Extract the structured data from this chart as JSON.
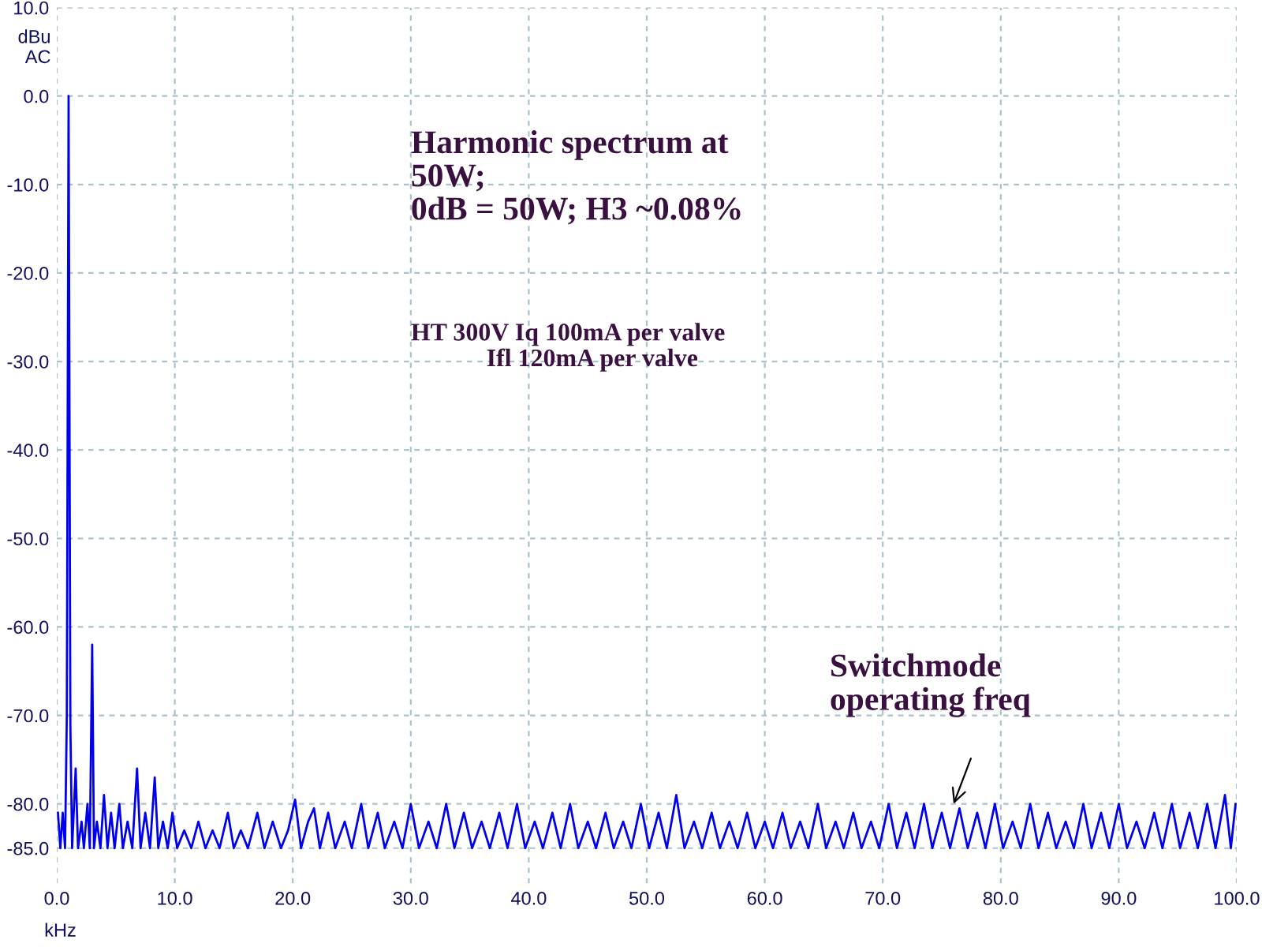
{
  "chart_data": {
    "type": "line",
    "xlabel": "kHz",
    "ylabel": "dBu\nAC",
    "xlim": [
      0,
      100
    ],
    "ylim": [
      -89,
      10
    ],
    "xticks": [
      {
        "value": 0,
        "label": "0.0"
      },
      {
        "value": 10,
        "label": "10.0"
      },
      {
        "value": 20,
        "label": "20.0"
      },
      {
        "value": 30,
        "label": "30.0"
      },
      {
        "value": 40,
        "label": "40.0"
      },
      {
        "value": 50,
        "label": "50.0"
      },
      {
        "value": 60,
        "label": "60.0"
      },
      {
        "value": 70,
        "label": "70.0"
      },
      {
        "value": 80,
        "label": "80.0"
      },
      {
        "value": 90,
        "label": "90.0"
      },
      {
        "value": 100,
        "label": "100.0"
      }
    ],
    "yticks": [
      {
        "value": 10,
        "label": "10.0"
      },
      {
        "value": 0,
        "label": "0.0"
      },
      {
        "value": -10,
        "label": "-10.0"
      },
      {
        "value": -20,
        "label": "-20.0"
      },
      {
        "value": -30,
        "label": "-30.0"
      },
      {
        "value": -40,
        "label": "-40.0"
      },
      {
        "value": -50,
        "label": "-50.0"
      },
      {
        "value": -60,
        "label": "-60.0"
      },
      {
        "value": -70,
        "label": "-70.0"
      },
      {
        "value": -80,
        "label": "-80.0"
      },
      {
        "value": -85,
        "label": "-85.0"
      }
    ],
    "grid": true,
    "marker": "none",
    "line_style": "solid",
    "annotations": [
      "Harmonic spectrum at\n50W;\n0dB = 50W; H3 ~0.08%",
      "HT 300V Iq 100mA per valve\n            Ifl 120mA per valve",
      {
        "text": "Switchmode\noperating freq",
        "x": 76,
        "y": -80
      }
    ],
    "series": [
      {
        "color": "#0000ee",
        "x": [
          0.1,
          0.3,
          0.5,
          0.7,
          0.85,
          1.0,
          1.15,
          1.3,
          1.6,
          1.8,
          2.1,
          2.3,
          2.6,
          2.8,
          3.0,
          3.15,
          3.4,
          3.7,
          4.0,
          4.3,
          4.6,
          4.9,
          5.3,
          5.6,
          6.0,
          6.4,
          6.8,
          7.1,
          7.5,
          7.9,
          8.3,
          8.6,
          9.0,
          9.4,
          9.8,
          10.2,
          10.8,
          11.4,
          12.0,
          12.6,
          13.2,
          13.8,
          14.5,
          15.0,
          15.6,
          16.2,
          17.0,
          17.6,
          18.3,
          19.0,
          19.6,
          20.2,
          20.7,
          21.3,
          21.8,
          22.3,
          23.0,
          23.6,
          24.4,
          25.0,
          25.8,
          26.4,
          27.2,
          27.8,
          28.6,
          29.3,
          30.0,
          30.7,
          31.5,
          32.2,
          33.0,
          33.7,
          34.5,
          35.2,
          36.0,
          36.7,
          37.5,
          38.2,
          39.0,
          39.7,
          40.5,
          41.2,
          42.0,
          42.7,
          43.5,
          44.2,
          45.0,
          45.7,
          46.5,
          47.2,
          48.0,
          48.7,
          49.5,
          50.2,
          51.0,
          51.7,
          52.5,
          53.2,
          54.0,
          54.7,
          55.5,
          56.2,
          57.0,
          57.7,
          58.5,
          59.2,
          60.0,
          60.7,
          61.5,
          62.2,
          63.0,
          63.7,
          64.5,
          65.2,
          66.0,
          66.7,
          67.5,
          68.2,
          69.0,
          69.7,
          70.5,
          71.2,
          72.0,
          72.7,
          73.5,
          74.2,
          75.0,
          75.7,
          76.5,
          77.2,
          78.0,
          78.7,
          79.5,
          80.2,
          81.0,
          81.7,
          82.5,
          83.2,
          84.0,
          84.7,
          85.5,
          86.2,
          87.0,
          87.7,
          88.5,
          89.2,
          90.0,
          90.7,
          91.5,
          92.2,
          93.0,
          93.7,
          94.5,
          95.2,
          96.0,
          96.7,
          97.5,
          98.2,
          99.0,
          99.5,
          99.9
        ],
        "values": [
          -81,
          -85,
          -81,
          -85,
          -70,
          0,
          -71,
          -85,
          -76,
          -85,
          -82,
          -85,
          -80,
          -85,
          -62,
          -85,
          -82,
          -85,
          -79,
          -85,
          -81,
          -85,
          -80,
          -85,
          -82,
          -85,
          -76,
          -85,
          -81,
          -85,
          -77,
          -85,
          -82,
          -85,
          -81,
          -85,
          -83,
          -85,
          -82,
          -85,
          -83,
          -85,
          -81,
          -85,
          -83,
          -85,
          -81,
          -85,
          -82,
          -85,
          -83,
          -79.5,
          -85,
          -82,
          -80.5,
          -85,
          -81,
          -85,
          -82,
          -85,
          -80,
          -85,
          -81,
          -85,
          -82,
          -85,
          -80,
          -85,
          -82,
          -85,
          -80,
          -85,
          -81,
          -85,
          -82,
          -85,
          -81,
          -85,
          -80,
          -85,
          -82,
          -85,
          -81,
          -85,
          -80,
          -85,
          -82,
          -85,
          -81,
          -85,
          -82,
          -85,
          -80,
          -85,
          -81,
          -85,
          -79,
          -85,
          -82,
          -85,
          -81,
          -85,
          -82,
          -85,
          -81,
          -85,
          -82,
          -85,
          -81,
          -85,
          -82,
          -85,
          -80,
          -85,
          -82,
          -85,
          -81,
          -85,
          -82,
          -85,
          -80,
          -85,
          -81,
          -85,
          -80,
          -85,
          -81,
          -85,
          -80.5,
          -85,
          -81,
          -85,
          -80,
          -85,
          -82,
          -85,
          -80,
          -85,
          -81,
          -85,
          -82,
          -85,
          -80,
          -85,
          -81,
          -85,
          -80,
          -85,
          -82,
          -85,
          -81,
          -85,
          -80,
          -85,
          -81,
          -85,
          -80,
          -85,
          -79,
          -85,
          -80
        ]
      }
    ]
  }
}
